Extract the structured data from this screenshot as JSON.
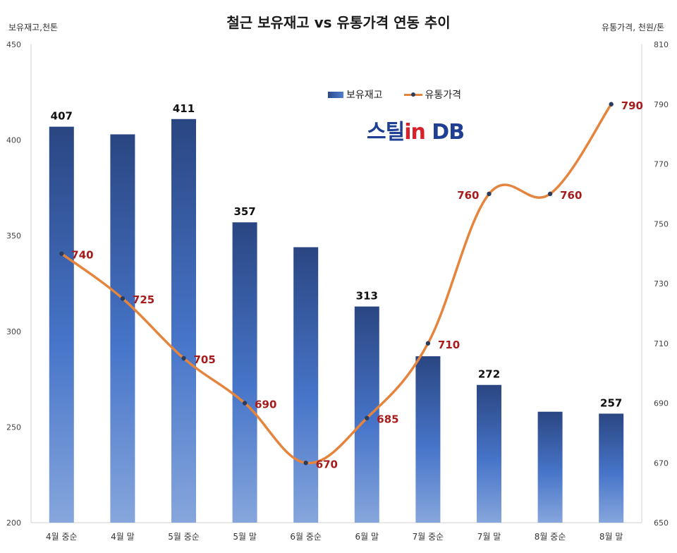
{
  "chart_data": {
    "type": "bar+line",
    "title": "철근 보유재고 vs 유통가격 연동 추이",
    "y_left_label": "보유재고,천톤",
    "y_right_label": "유통가격, 천원/톤",
    "categories": [
      "4월 중순",
      "4월 말",
      "5월 중순",
      "5월 말",
      "6월 중순",
      "6월 말",
      "7월 중순",
      "7월 말",
      "8월 중순",
      "8월 말"
    ],
    "ylim_left": [
      200,
      450
    ],
    "yticks_left": [
      200,
      250,
      300,
      350,
      400,
      450
    ],
    "ylim_right": [
      650,
      810
    ],
    "yticks_right": [
      650,
      670,
      690,
      710,
      730,
      750,
      770,
      790,
      810
    ],
    "series": [
      {
        "name": "보유재고",
        "type": "bar",
        "axis": "left",
        "color": "#2c4a8a",
        "values": [
          407,
          403,
          411,
          357,
          344,
          313,
          287,
          272,
          258,
          257
        ],
        "labels": [
          "407",
          "",
          "411",
          "357",
          "",
          "313",
          "",
          "272",
          "",
          "257"
        ]
      },
      {
        "name": "유통가격",
        "type": "line",
        "axis": "right",
        "color": "#e5843c",
        "values": [
          740,
          725,
          705,
          690,
          670,
          685,
          710,
          760,
          760,
          790
        ],
        "labels": [
          "740",
          "725",
          "705",
          "690",
          "670",
          "685",
          "710",
          "760",
          "760",
          "790"
        ]
      }
    ],
    "grid": false,
    "legend_position": "top-right",
    "logo_text": "스틸inDB",
    "label_colors": {
      "bar_label": "#111111",
      "line_label": "#a61b1b"
    }
  }
}
